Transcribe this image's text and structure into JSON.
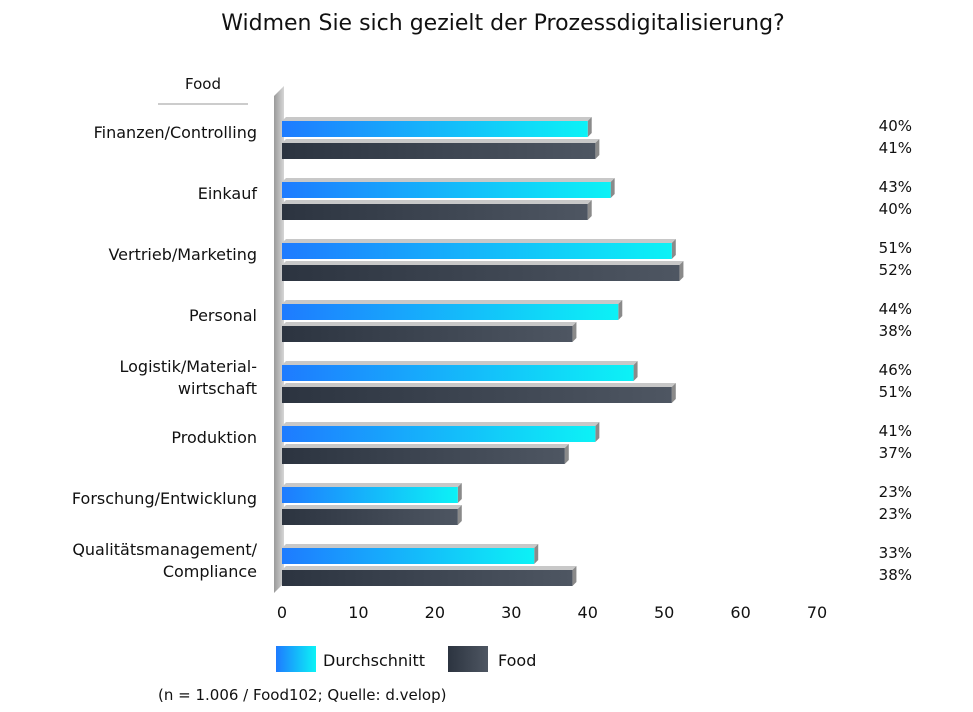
{
  "chart_data": {
    "type": "bar",
    "orientation": "horizontal",
    "title": "Widmen Sie sich gezielt der Prozessdigitalisierung?",
    "subheading": "Food",
    "categories": [
      [
        "Finanzen/Controlling"
      ],
      [
        "Einkauf"
      ],
      [
        "Vertrieb/Marketing"
      ],
      [
        "Personal"
      ],
      [
        "Logistik/Material-",
        "wirtschaft"
      ],
      [
        "Produktion"
      ],
      [
        "Forschung/Entwicklung"
      ],
      [
        "Qualitätsmanagement/",
        "Compliance"
      ]
    ],
    "series": [
      {
        "name": "Durchschnitt",
        "values": [
          40,
          43,
          51,
          44,
          46,
          41,
          23,
          33
        ],
        "labels": [
          "40%",
          "43%",
          "51%",
          "44%",
          "46%",
          "41%",
          "23%",
          "33%"
        ],
        "color_start": "#1e7bff",
        "color_end": "#0cf2f6"
      },
      {
        "name": "Food",
        "values": [
          41,
          40,
          52,
          38,
          51,
          37,
          23,
          38
        ],
        "labels": [
          "41%",
          "40%",
          "52%",
          "38%",
          "51%",
          "37%",
          "23%",
          "38%"
        ],
        "color_start": "#2c3440",
        "color_end": "#4e5662"
      }
    ],
    "xlim": [
      0,
      70
    ],
    "xticks": [
      "0",
      "10",
      "20",
      "30",
      "40",
      "50",
      "60",
      "70"
    ],
    "legend": "bottom",
    "grid": false,
    "source": "(n = 1.006 / Food102; Quelle: d.velop)"
  }
}
